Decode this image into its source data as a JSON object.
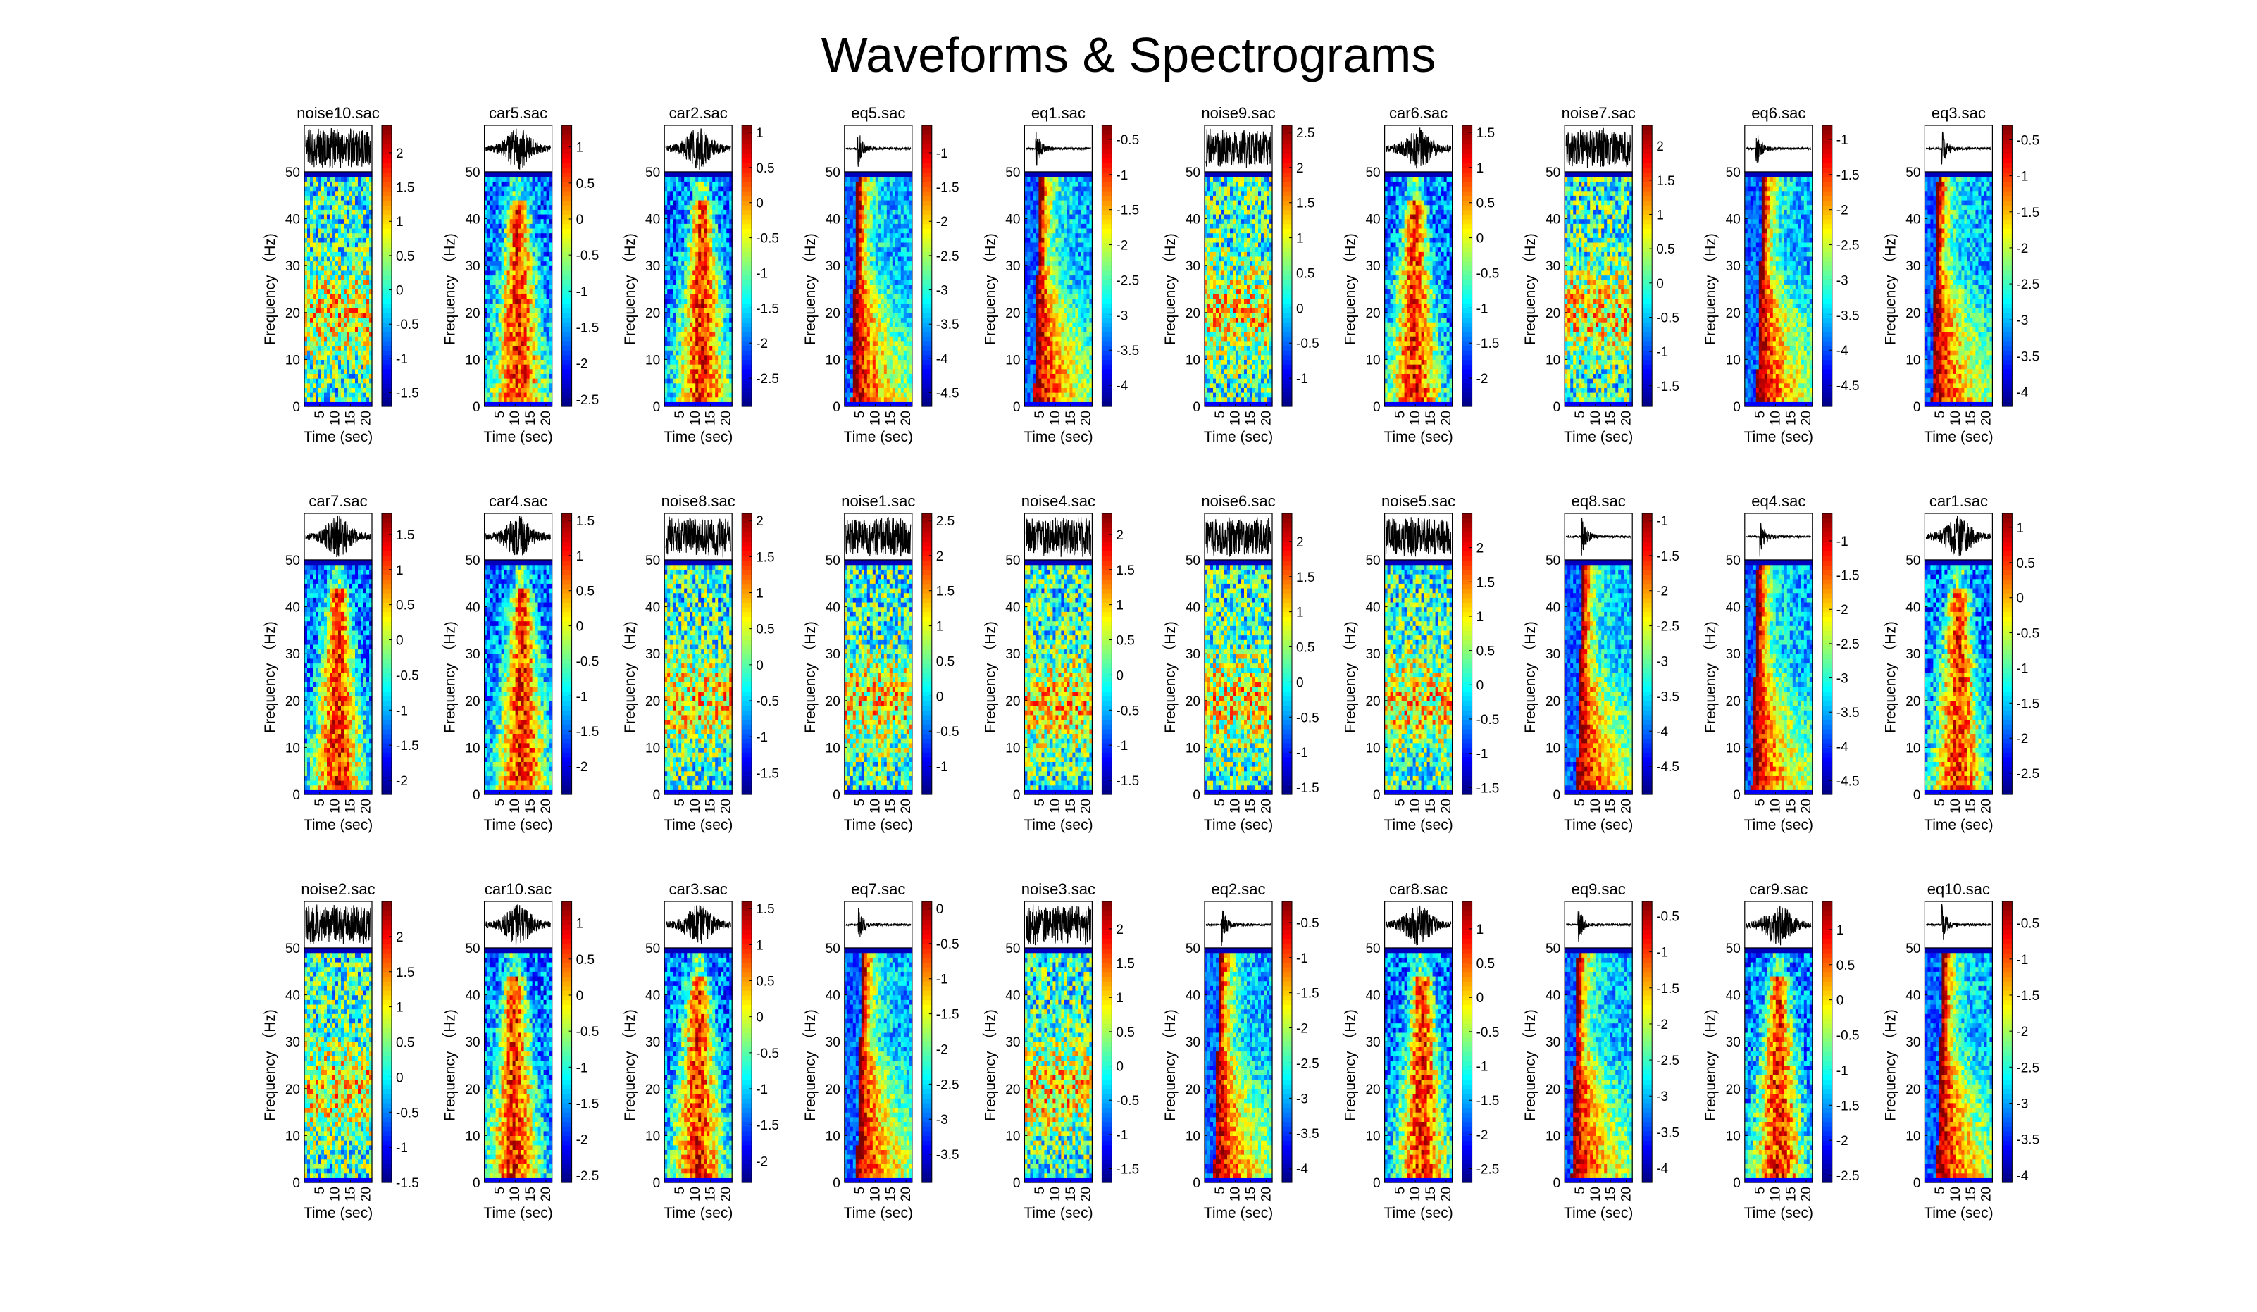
{
  "figure": {
    "title": "Waveforms & Spectrograms"
  },
  "chart_data": {
    "type": "heatmap",
    "colormap": "jet",
    "xlabel": "Time (sec)",
    "ylabel": "Frequency （Hz)",
    "xticks": [
      "5",
      "10",
      "15",
      "20"
    ],
    "yticks": [
      "0",
      "10",
      "20",
      "30",
      "40",
      "50"
    ],
    "xlim": [
      0,
      22
    ],
    "ylim": [
      0,
      50
    ],
    "panels": [
      {
        "name": "noise10.sac",
        "kind": "noise",
        "cbar_ticks": [
          "2",
          "1.5",
          "1",
          "0.5",
          "0",
          "-0.5",
          "-1",
          "-1.5"
        ],
        "cbar_range": [
          -1.7,
          2.4
        ]
      },
      {
        "name": "car5.sac",
        "kind": "car",
        "cbar_ticks": [
          "1",
          "0.5",
          "0",
          "-0.5",
          "-1",
          "-1.5",
          "-2",
          "-2.5"
        ],
        "cbar_range": [
          -2.6,
          1.3
        ]
      },
      {
        "name": "car2.sac",
        "kind": "car",
        "cbar_ticks": [
          "1",
          "0.5",
          "0",
          "-0.5",
          "-1",
          "-1.5",
          "-2",
          "-2.5"
        ],
        "cbar_range": [
          -2.9,
          1.1
        ]
      },
      {
        "name": "eq5.sac",
        "kind": "eq",
        "cbar_ticks": [
          "-1",
          "-1.5",
          "-2",
          "-2.5",
          "-3",
          "-3.5",
          "-4",
          "-4.5"
        ],
        "cbar_range": [
          -4.7,
          -0.6
        ]
      },
      {
        "name": "eq1.sac",
        "kind": "eq",
        "cbar_ticks": [
          "-0.5",
          "-1",
          "-1.5",
          "-2",
          "-2.5",
          "-3",
          "-3.5",
          "-4"
        ],
        "cbar_range": [
          -4.3,
          -0.3
        ]
      },
      {
        "name": "noise9.sac",
        "kind": "noise",
        "cbar_ticks": [
          "2.5",
          "2",
          "1.5",
          "1",
          "0.5",
          "0",
          "-0.5",
          "-1"
        ],
        "cbar_range": [
          -1.4,
          2.6
        ]
      },
      {
        "name": "car6.sac",
        "kind": "car",
        "cbar_ticks": [
          "1.5",
          "1",
          "0.5",
          "0",
          "-0.5",
          "-1",
          "-1.5",
          "-2"
        ],
        "cbar_range": [
          -2.4,
          1.6
        ]
      },
      {
        "name": "noise7.sac",
        "kind": "noise",
        "cbar_ticks": [
          "2",
          "1.5",
          "1",
          "0.5",
          "0",
          "-0.5",
          "-1",
          "-1.5"
        ],
        "cbar_range": [
          -1.8,
          2.3
        ]
      },
      {
        "name": "eq6.sac",
        "kind": "eq",
        "cbar_ticks": [
          "-1",
          "-1.5",
          "-2",
          "-2.5",
          "-3",
          "-3.5",
          "-4",
          "-4.5"
        ],
        "cbar_range": [
          -4.8,
          -0.8
        ]
      },
      {
        "name": "eq3.sac",
        "kind": "eq",
        "cbar_ticks": [
          "-0.5",
          "-1",
          "-1.5",
          "-2",
          "-2.5",
          "-3",
          "-3.5",
          "-4"
        ],
        "cbar_range": [
          -4.2,
          -0.3
        ]
      },
      {
        "name": "car7.sac",
        "kind": "car",
        "cbar_ticks": [
          "1.5",
          "1",
          "0.5",
          "0",
          "-0.5",
          "-1",
          "-1.5",
          "-2"
        ],
        "cbar_range": [
          -2.2,
          1.8
        ]
      },
      {
        "name": "car4.sac",
        "kind": "car",
        "cbar_ticks": [
          "1.5",
          "1",
          "0.5",
          "0",
          "-0.5",
          "-1",
          "-1.5",
          "-2"
        ],
        "cbar_range": [
          -2.4,
          1.6
        ]
      },
      {
        "name": "noise8.sac",
        "kind": "noise",
        "cbar_ticks": [
          "2",
          "1.5",
          "1",
          "0.5",
          "0",
          "-0.5",
          "-1",
          "-1.5"
        ],
        "cbar_range": [
          -1.8,
          2.1
        ]
      },
      {
        "name": "noise1.sac",
        "kind": "noise",
        "cbar_ticks": [
          "2.5",
          "2",
          "1.5",
          "1",
          "0.5",
          "0",
          "-0.5",
          "-1"
        ],
        "cbar_range": [
          -1.4,
          2.6
        ]
      },
      {
        "name": "noise4.sac",
        "kind": "noise",
        "cbar_ticks": [
          "2",
          "1.5",
          "1",
          "0.5",
          "0",
          "-0.5",
          "-1",
          "-1.5"
        ],
        "cbar_range": [
          -1.7,
          2.3
        ]
      },
      {
        "name": "noise6.sac",
        "kind": "noise",
        "cbar_ticks": [
          "2",
          "1.5",
          "1",
          "0.5",
          "0",
          "-0.5",
          "-1",
          "-1.5"
        ],
        "cbar_range": [
          -1.6,
          2.4
        ]
      },
      {
        "name": "noise5.sac",
        "kind": "noise",
        "cbar_ticks": [
          "2",
          "1.5",
          "1",
          "0.5",
          "0",
          "-0.5",
          "-1",
          "-1.5"
        ],
        "cbar_range": [
          -1.6,
          2.5
        ]
      },
      {
        "name": "eq8.sac",
        "kind": "eq",
        "cbar_ticks": [
          "-1",
          "-1.5",
          "-2",
          "-2.5",
          "-3",
          "-3.5",
          "-4",
          "-4.5"
        ],
        "cbar_range": [
          -4.9,
          -0.9
        ]
      },
      {
        "name": "eq4.sac",
        "kind": "eq",
        "cbar_ticks": [
          "-1",
          "-1.5",
          "-2",
          "-2.5",
          "-3",
          "-3.5",
          "-4",
          "-4.5"
        ],
        "cbar_range": [
          -4.7,
          -0.6
        ]
      },
      {
        "name": "car1.sac",
        "kind": "car",
        "cbar_ticks": [
          "1",
          "0.5",
          "0",
          "-0.5",
          "-1",
          "-1.5",
          "-2",
          "-2.5"
        ],
        "cbar_range": [
          -2.8,
          1.2
        ]
      },
      {
        "name": "noise2.sac",
        "kind": "noise",
        "cbar_ticks": [
          "2",
          "1.5",
          "1",
          "0.5",
          "0",
          "-0.5",
          "-1",
          "-1.5"
        ],
        "cbar_range": [
          -1.5,
          2.5
        ]
      },
      {
        "name": "car10.sac",
        "kind": "car",
        "cbar_ticks": [
          "1",
          "0.5",
          "0",
          "-0.5",
          "-1",
          "-1.5",
          "-2",
          "-2.5"
        ],
        "cbar_range": [
          -2.6,
          1.3
        ]
      },
      {
        "name": "car3.sac",
        "kind": "car",
        "cbar_ticks": [
          "1.5",
          "1",
          "0.5",
          "0",
          "-0.5",
          "-1",
          "-1.5",
          "-2"
        ],
        "cbar_range": [
          -2.3,
          1.6
        ]
      },
      {
        "name": "eq7.sac",
        "kind": "eq",
        "cbar_ticks": [
          "0",
          "-0.5",
          "-1",
          "-1.5",
          "-2",
          "-2.5",
          "-3",
          "-3.5"
        ],
        "cbar_range": [
          -3.9,
          0.1
        ]
      },
      {
        "name": "noise3.sac",
        "kind": "noise",
        "cbar_ticks": [
          "2",
          "1.5",
          "1",
          "0.5",
          "0",
          "-0.5",
          "-1",
          "-1.5"
        ],
        "cbar_range": [
          -1.7,
          2.4
        ]
      },
      {
        "name": "eq2.sac",
        "kind": "eq",
        "cbar_ticks": [
          "-0.5",
          "-1",
          "-1.5",
          "-2",
          "-2.5",
          "-3",
          "-3.5",
          "-4"
        ],
        "cbar_range": [
          -4.2,
          -0.2
        ]
      },
      {
        "name": "car8.sac",
        "kind": "car",
        "cbar_ticks": [
          "1",
          "0.5",
          "0",
          "-0.5",
          "-1",
          "-1.5",
          "-2",
          "-2.5"
        ],
        "cbar_range": [
          -2.7,
          1.4
        ]
      },
      {
        "name": "eq9.sac",
        "kind": "eq",
        "cbar_ticks": [
          "-0.5",
          "-1",
          "-1.5",
          "-2",
          "-2.5",
          "-3",
          "-3.5",
          "-4"
        ],
        "cbar_range": [
          -4.2,
          -0.3
        ]
      },
      {
        "name": "car9.sac",
        "kind": "car",
        "cbar_ticks": [
          "1",
          "0.5",
          "0",
          "-0.5",
          "-1",
          "-1.5",
          "-2",
          "-2.5"
        ],
        "cbar_range": [
          -2.6,
          1.4
        ]
      },
      {
        "name": "eq10.sac",
        "kind": "eq",
        "cbar_ticks": [
          "-0.5",
          "-1",
          "-1.5",
          "-2",
          "-2.5",
          "-3",
          "-3.5",
          "-4"
        ],
        "cbar_range": [
          -4.1,
          -0.2
        ]
      }
    ]
  }
}
